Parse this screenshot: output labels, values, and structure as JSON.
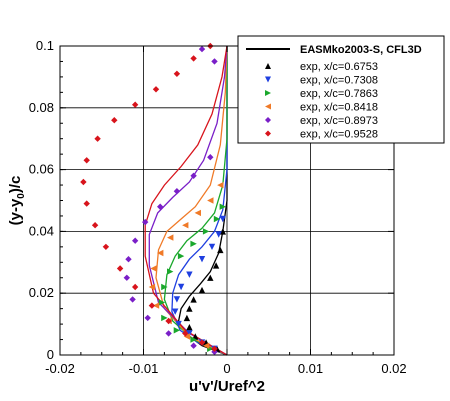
{
  "chart_data": {
    "type": "scatter",
    "xlabel": "u'v'/Uref^2",
    "ylabel_parts": [
      "(y-y",
      "0",
      ")/c"
    ],
    "xlim": [
      -0.02,
      0.02
    ],
    "ylim": [
      0,
      0.1
    ],
    "xticks": [
      -0.02,
      -0.01,
      0,
      0.01,
      0.02
    ],
    "xtick_labels": [
      "-0.02",
      "-0.01",
      "0",
      "0.01",
      "0.02"
    ],
    "yticks": [
      0,
      0.02,
      0.04,
      0.06,
      0.08,
      0.1
    ],
    "ytick_labels": [
      "0",
      "0.02",
      "0.04",
      "0.06",
      "0.08",
      "0.1"
    ],
    "grid": true,
    "legend_position": "top-right",
    "model_legend": "EASMko2003-S, CFL3D",
    "series": [
      {
        "name": "exp, x/c=0.6753",
        "color": "#000000",
        "marker": "triangle-up",
        "points": [
          [
            -0.0005,
            0.04
          ],
          [
            -0.0008,
            0.034
          ],
          [
            -0.0013,
            0.029
          ],
          [
            -0.002,
            0.025
          ],
          [
            -0.003,
            0.021
          ],
          [
            -0.004,
            0.018
          ],
          [
            -0.0045,
            0.015
          ],
          [
            -0.0048,
            0.012
          ],
          [
            -0.0045,
            0.009
          ],
          [
            -0.0038,
            0.006
          ],
          [
            -0.0025,
            0.004
          ],
          [
            -0.0012,
            0.002
          ]
        ],
        "line": [
          [
            0,
            0.1
          ],
          [
            0,
            0.05
          ],
          [
            -0.0005,
            0.04
          ],
          [
            -0.001,
            0.033
          ],
          [
            -0.002,
            0.027
          ],
          [
            -0.0032,
            0.023
          ],
          [
            -0.0045,
            0.019
          ],
          [
            -0.0055,
            0.015
          ],
          [
            -0.0058,
            0.011
          ],
          [
            -0.005,
            0.007
          ],
          [
            -0.003,
            0.003
          ],
          [
            0,
            0
          ]
        ]
      },
      {
        "name": "exp, x/c=0.7308",
        "color": "#1f3fe0",
        "marker": "triangle-down",
        "points": [
          [
            -0.0005,
            0.044
          ],
          [
            -0.001,
            0.039
          ],
          [
            -0.0018,
            0.035
          ],
          [
            -0.003,
            0.031
          ],
          [
            -0.0045,
            0.026
          ],
          [
            -0.0055,
            0.022
          ],
          [
            -0.006,
            0.018
          ],
          [
            -0.0062,
            0.014
          ],
          [
            -0.0058,
            0.01
          ],
          [
            -0.0045,
            0.007
          ],
          [
            -0.003,
            0.004
          ],
          [
            -0.0015,
            0.002
          ]
        ],
        "line": [
          [
            0,
            0.1
          ],
          [
            0,
            0.06
          ],
          [
            -0.0005,
            0.047
          ],
          [
            -0.0015,
            0.04
          ],
          [
            -0.003,
            0.035
          ],
          [
            -0.0045,
            0.031
          ],
          [
            -0.0058,
            0.026
          ],
          [
            -0.0065,
            0.02
          ],
          [
            -0.0066,
            0.014
          ],
          [
            -0.0056,
            0.008
          ],
          [
            -0.0035,
            0.004
          ],
          [
            0,
            0
          ]
        ]
      },
      {
        "name": "exp, x/c=0.7863",
        "color": "#1aa82c",
        "marker": "triangle-right",
        "points": [
          [
            -0.0005,
            0.048
          ],
          [
            -0.0012,
            0.044
          ],
          [
            -0.0025,
            0.04
          ],
          [
            -0.004,
            0.036
          ],
          [
            -0.0055,
            0.032
          ],
          [
            -0.0068,
            0.027
          ],
          [
            -0.0075,
            0.022
          ],
          [
            -0.0078,
            0.017
          ],
          [
            -0.0075,
            0.012
          ],
          [
            -0.006,
            0.008
          ],
          [
            -0.004,
            0.005
          ],
          [
            -0.002,
            0.002
          ]
        ],
        "line": [
          [
            0,
            0.1
          ],
          [
            0,
            0.07
          ],
          [
            -0.0005,
            0.055
          ],
          [
            -0.0015,
            0.046
          ],
          [
            -0.003,
            0.041
          ],
          [
            -0.0048,
            0.037
          ],
          [
            -0.0062,
            0.032
          ],
          [
            -0.0072,
            0.026
          ],
          [
            -0.0075,
            0.018
          ],
          [
            -0.0065,
            0.011
          ],
          [
            -0.004,
            0.005
          ],
          [
            0,
            0
          ]
        ]
      },
      {
        "name": "exp, x/c=0.8418",
        "color": "#f07a28",
        "marker": "triangle-left",
        "points": [
          [
            -0.0008,
            0.055
          ],
          [
            -0.002,
            0.05
          ],
          [
            -0.0035,
            0.046
          ],
          [
            -0.005,
            0.042
          ],
          [
            -0.0068,
            0.038
          ],
          [
            -0.008,
            0.033
          ],
          [
            -0.0088,
            0.028
          ],
          [
            -0.009,
            0.022
          ],
          [
            -0.0085,
            0.016
          ],
          [
            -0.007,
            0.011
          ],
          [
            -0.0048,
            0.006
          ],
          [
            -0.0025,
            0.003
          ]
        ],
        "line": [
          [
            0,
            0.1
          ],
          [
            -0.0002,
            0.085
          ],
          [
            -0.0008,
            0.068
          ],
          [
            -0.002,
            0.055
          ],
          [
            -0.0038,
            0.048
          ],
          [
            -0.0055,
            0.044
          ],
          [
            -0.0072,
            0.04
          ],
          [
            -0.0082,
            0.034
          ],
          [
            -0.0085,
            0.025
          ],
          [
            -0.0075,
            0.015
          ],
          [
            -0.0045,
            0.006
          ],
          [
            0,
            0
          ]
        ]
      },
      {
        "name": "exp, x/c=0.8973",
        "color": "#7a1fc8",
        "marker": "diamond",
        "points": [
          [
            -0.002,
            0.064
          ],
          [
            -0.004,
            0.058
          ],
          [
            -0.006,
            0.053
          ],
          [
            -0.008,
            0.048
          ],
          [
            -0.0098,
            0.043
          ],
          [
            -0.011,
            0.037
          ],
          [
            -0.0118,
            0.031
          ],
          [
            -0.012,
            0.025
          ],
          [
            -0.0113,
            0.018
          ],
          [
            -0.0095,
            0.012
          ],
          [
            -0.007,
            0.007
          ],
          [
            -0.004,
            0.003
          ],
          [
            -0.0015,
            0.001
          ],
          [
            -0.003,
            0.099
          ],
          [
            -0.0015,
            0.095
          ]
        ],
        "line": [
          [
            0,
            0.1
          ],
          [
            -0.0003,
            0.09
          ],
          [
            -0.0012,
            0.075
          ],
          [
            -0.0028,
            0.063
          ],
          [
            -0.0045,
            0.056
          ],
          [
            -0.0065,
            0.051
          ],
          [
            -0.0083,
            0.046
          ],
          [
            -0.0093,
            0.039
          ],
          [
            -0.0093,
            0.029
          ],
          [
            -0.0082,
            0.017
          ],
          [
            -0.0045,
            0.007
          ],
          [
            0,
            0
          ]
        ]
      },
      {
        "name": "exp, x/c=0.9528",
        "color": "#d8141c",
        "marker": "diamond",
        "points": [
          [
            -0.002,
            0.1
          ],
          [
            -0.004,
            0.096
          ],
          [
            -0.006,
            0.091
          ],
          [
            -0.0085,
            0.086
          ],
          [
            -0.011,
            0.081
          ],
          [
            -0.0135,
            0.076
          ],
          [
            -0.0155,
            0.07
          ],
          [
            -0.0168,
            0.063
          ],
          [
            -0.0172,
            0.056
          ],
          [
            -0.0168,
            0.049
          ],
          [
            -0.0158,
            0.042
          ],
          [
            -0.0145,
            0.035
          ],
          [
            -0.0128,
            0.028
          ],
          [
            -0.011,
            0.022
          ],
          [
            -0.009,
            0.016
          ],
          [
            -0.007,
            0.011
          ],
          [
            -0.005,
            0.007
          ],
          [
            -0.003,
            0.004
          ],
          [
            -0.0015,
            0.002
          ]
        ],
        "line": [
          [
            0,
            0.1
          ],
          [
            -0.0006,
            0.09
          ],
          [
            -0.0018,
            0.078
          ],
          [
            -0.0035,
            0.068
          ],
          [
            -0.0055,
            0.061
          ],
          [
            -0.0075,
            0.055
          ],
          [
            -0.009,
            0.049
          ],
          [
            -0.0098,
            0.042
          ],
          [
            -0.0098,
            0.032
          ],
          [
            -0.0088,
            0.02
          ],
          [
            -0.005,
            0.008
          ],
          [
            0,
            0
          ]
        ]
      }
    ]
  }
}
